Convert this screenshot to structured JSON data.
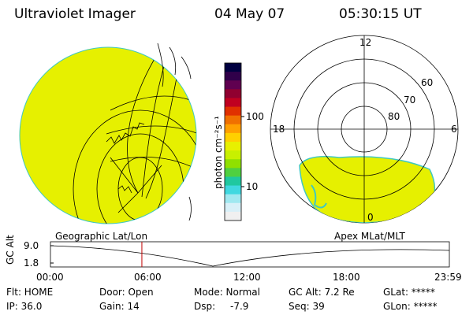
{
  "header": {
    "instrument": "Ultraviolet Imager",
    "date": "04 May 07",
    "time": "05:30:15 UT"
  },
  "colorbar": {
    "unit_label": "photon cm⁻²s⁻¹",
    "ticks": [
      "100",
      "10"
    ],
    "colors": [
      "#000040",
      "#30004a",
      "#600050",
      "#900030",
      "#c00020",
      "#e03000",
      "#f07000",
      "#ffa000",
      "#ffd000",
      "#e8f000",
      "#c8f000",
      "#90e000",
      "#50d040",
      "#20c8a0",
      "#40d8e0",
      "#a0e8f0",
      "#d8f0f8",
      "#f0f0f0"
    ]
  },
  "polar_plot": {
    "mlt_labels": {
      "top": "12",
      "left": "18",
      "right": "6",
      "bottom": "0"
    },
    "lat_labels": [
      "60",
      "70",
      "80"
    ]
  },
  "geo_label": "Geographic Lat/Lon",
  "apex_label": "Apex MLat/MLT",
  "altitude_plot": {
    "axis_title": "GC Alt",
    "y_ticks": [
      "9.0",
      "1.8"
    ],
    "x_ticks": [
      "00:00",
      "06:00",
      "12:00",
      "18:00",
      "23:59"
    ],
    "marker_hour": 5.5
  },
  "footer": {
    "flt": "Flt: HOME",
    "ip": "IP: 36.0",
    "door": "Door: Open",
    "gain": "Gain: 14",
    "mode": "Mode: Normal",
    "dsp_label": "Dsp:",
    "dsp_value": "-7.9",
    "gc_alt": "GC Alt: 7.2 Re",
    "seq": "Seq: 39",
    "glat": "GLat: *****",
    "glon": "GLon: *****"
  },
  "colors": {
    "image_fill": "#e6f000",
    "image_edge": "#40c8c0",
    "marker": "#c00000"
  }
}
